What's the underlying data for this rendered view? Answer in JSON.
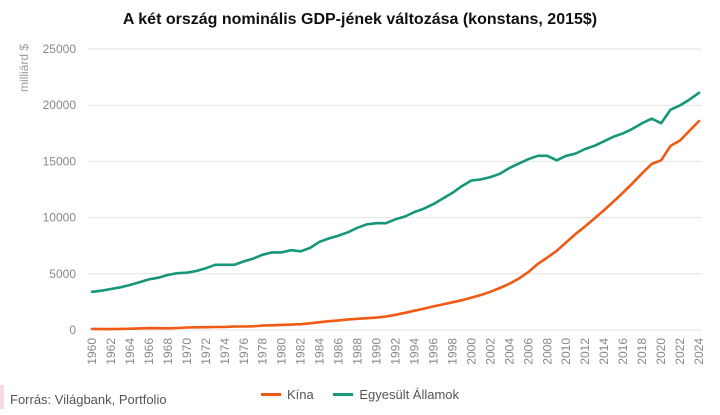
{
  "colors": {
    "china": "#f05a13",
    "usa": "#16967a",
    "grid": "#e4e4e4",
    "axis_text": "#888888",
    "source_mark": "#f7d9e6"
  },
  "footer": {
    "source": "Forrás: Világbank, Portfolio"
  },
  "chart_data": {
    "type": "line",
    "title": "A két ország nominális GDP-jének változása (konstans, 2015$)",
    "xlabel": "",
    "ylabel": "milliárd $",
    "ylim": [
      0,
      25000
    ],
    "yticks": [
      "0",
      "5000",
      "10000",
      "15000",
      "20000",
      "25000"
    ],
    "grid": "horizontal",
    "legend": "bottom",
    "x": [
      1960,
      1961,
      1962,
      1963,
      1964,
      1965,
      1966,
      1967,
      1968,
      1969,
      1970,
      1971,
      1972,
      1973,
      1974,
      1975,
      1976,
      1977,
      1978,
      1979,
      1980,
      1981,
      1982,
      1983,
      1984,
      1985,
      1986,
      1987,
      1988,
      1989,
      1990,
      1991,
      1992,
      1993,
      1994,
      1995,
      1996,
      1997,
      1998,
      1999,
      2000,
      2001,
      2002,
      2003,
      2004,
      2005,
      2006,
      2007,
      2008,
      2009,
      2010,
      2011,
      2012,
      2013,
      2014,
      2015,
      2016,
      2017,
      2018,
      2019,
      2020,
      2021,
      2022,
      2023,
      2024
    ],
    "xticks": [
      "1960",
      "1962",
      "1964",
      "1966",
      "1968",
      "1970",
      "1972",
      "1974",
      "1976",
      "1978",
      "1980",
      "1982",
      "1984",
      "1986",
      "1988",
      "1990",
      "1992",
      "1994",
      "1996",
      "1998",
      "2000",
      "2002",
      "2004",
      "2006",
      "2008",
      "2010",
      "2012",
      "2014",
      "2016",
      "2018",
      "2020",
      "2022",
      "2024"
    ],
    "series": [
      {
        "name": "Kína",
        "color": "#f05a13",
        "values": [
          100,
          80,
          80,
          100,
          120,
          140,
          170,
          160,
          150,
          180,
          220,
          240,
          250,
          270,
          280,
          310,
          310,
          330,
          390,
          420,
          450,
          480,
          520,
          600,
          690,
          780,
          850,
          940,
          1000,
          1050,
          1100,
          1200,
          1350,
          1530,
          1720,
          1900,
          2100,
          2280,
          2460,
          2650,
          2880,
          3110,
          3400,
          3740,
          4110,
          4570,
          5150,
          5880,
          6450,
          7050,
          7800,
          8550,
          9230,
          9950,
          10680,
          11440,
          12230,
          13060,
          13940,
          14770,
          15100,
          16380,
          16860,
          17730,
          18590
        ]
      },
      {
        "name": "Egyesült Államok",
        "color": "#16967a",
        "values": [
          3400,
          3500,
          3650,
          3800,
          4000,
          4250,
          4500,
          4650,
          4900,
          5050,
          5100,
          5250,
          5500,
          5800,
          5800,
          5800,
          6100,
          6350,
          6700,
          6900,
          6900,
          7100,
          7000,
          7300,
          7850,
          8150,
          8400,
          8700,
          9100,
          9400,
          9500,
          9500,
          9850,
          10100,
          10500,
          10800,
          11200,
          11700,
          12200,
          12800,
          13300,
          13400,
          13600,
          13900,
          14400,
          14800,
          15200,
          15500,
          15500,
          15100,
          15500,
          15700,
          16100,
          16400,
          16800,
          17200,
          17500,
          17900,
          18400,
          18800,
          18400,
          19600,
          19980,
          20500,
          21100
        ]
      }
    ]
  }
}
